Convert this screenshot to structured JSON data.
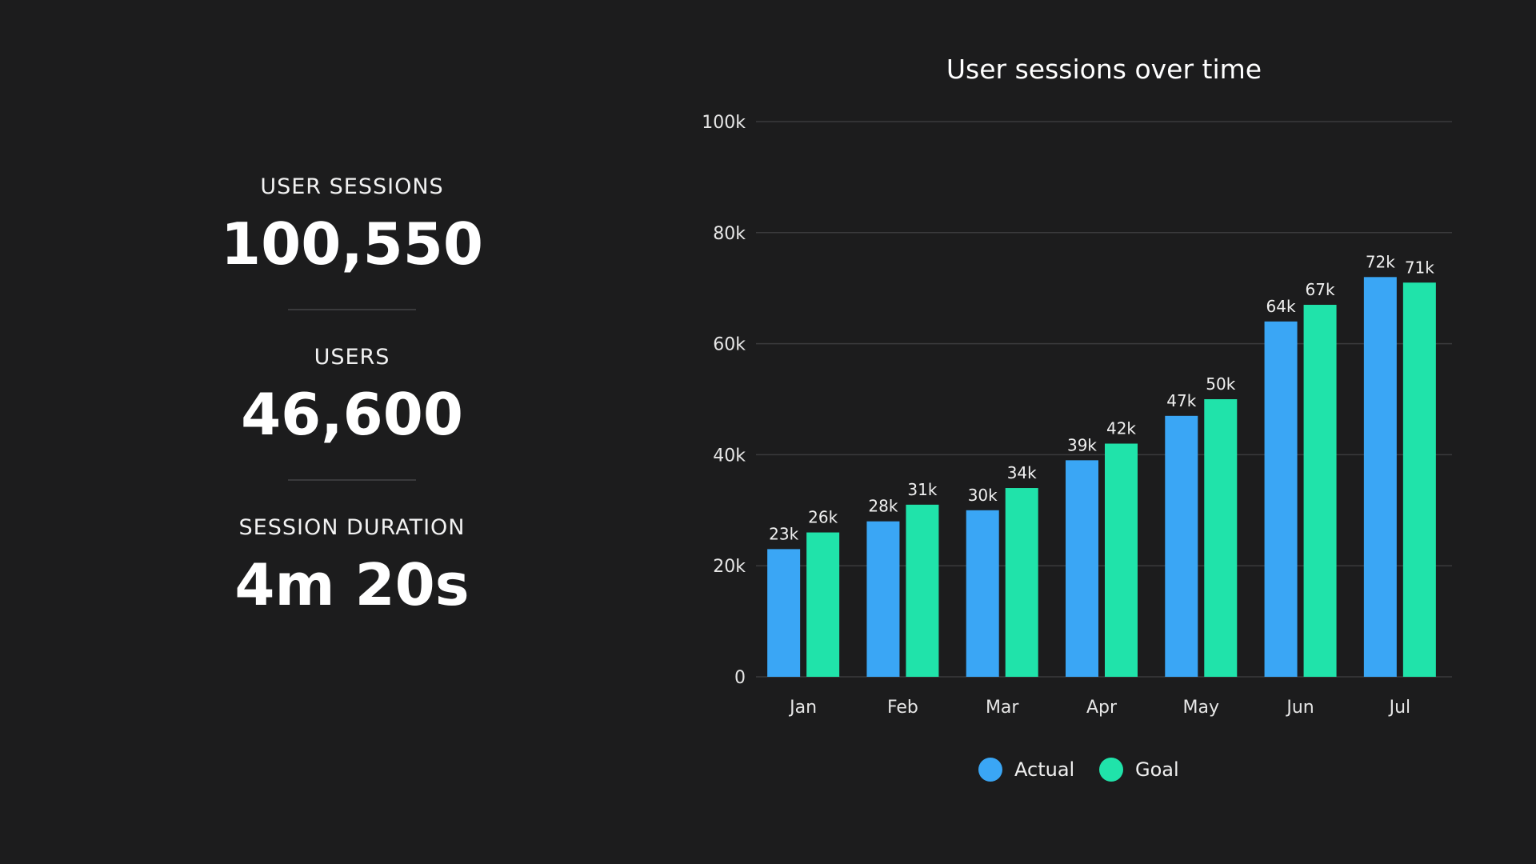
{
  "kpis": {
    "sessions": {
      "label": "USER SESSIONS",
      "value": "100,550"
    },
    "users": {
      "label": "USERS",
      "value": "46,600"
    },
    "duration": {
      "label": "SESSION DURATION",
      "value": "4m 20s"
    }
  },
  "colors": {
    "actual": "#3aa6f5",
    "goal": "#20e3aa",
    "grid": "#3a3a3c",
    "background": "#1c1c1d"
  },
  "chart_data": {
    "type": "bar",
    "title": "User sessions over time",
    "xlabel": "",
    "ylabel": "",
    "ylim": [
      0,
      100000
    ],
    "yticks": [
      0,
      20000,
      40000,
      60000,
      80000,
      100000
    ],
    "ytick_labels": [
      "0",
      "20k",
      "40k",
      "60k",
      "80k",
      "100k"
    ],
    "categories": [
      "Jan",
      "Feb",
      "Mar",
      "Apr",
      "May",
      "Jun",
      "Jul"
    ],
    "series": [
      {
        "name": "Actual",
        "values": [
          23000,
          28000,
          30000,
          39000,
          47000,
          64000,
          72000
        ],
        "labels": [
          "23k",
          "28k",
          "30k",
          "39k",
          "47k",
          "64k",
          "72k"
        ]
      },
      {
        "name": "Goal",
        "values": [
          26000,
          31000,
          34000,
          42000,
          50000,
          67000,
          71000
        ],
        "labels": [
          "26k",
          "31k",
          "34k",
          "42k",
          "50k",
          "67k",
          "71k"
        ]
      }
    ],
    "grid": true,
    "legend": "bottom"
  }
}
